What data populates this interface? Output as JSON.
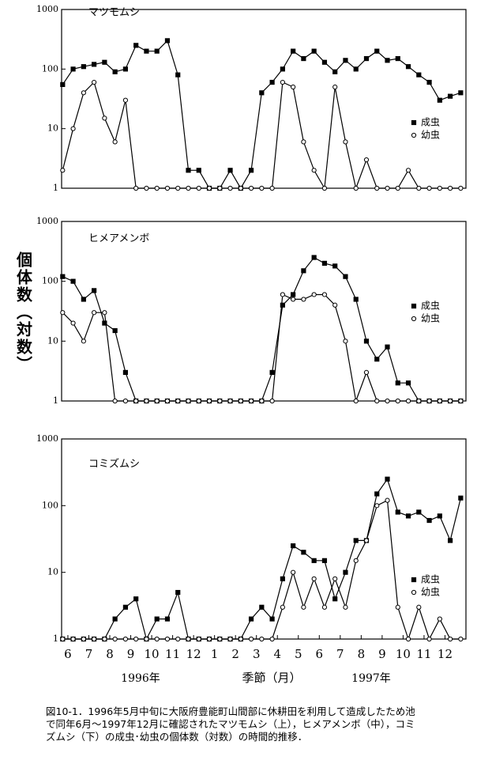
{
  "ylabel": "個体数（対数）",
  "year_labels": [
    "1996年",
    "1997年"
  ],
  "caption": "図10-1．1996年5月中旬に大阪府豊能町山間部に休耕田を利用して造成したため池で同年6月～1997年12月に確認されたマツモムシ（上），ヒメアメンボ（中），コミズムシ（下）の成虫･幼虫の個体数（対数）の時間的推移．",
  "chart_data": [
    {
      "type": "line",
      "title": "マツモムシ",
      "log_scale": true,
      "legend_position": "right",
      "x": [
        5.75,
        6.25,
        6.75,
        7.25,
        7.75,
        8.25,
        8.75,
        9.25,
        9.75,
        10.25,
        10.75,
        11.25,
        11.75,
        12.25,
        12.75,
        13.25,
        13.75,
        14.25,
        14.75,
        15.25,
        15.75,
        16.25,
        16.75,
        17.25,
        17.75,
        18.25,
        18.75,
        19.25,
        19.75,
        20.25,
        20.75,
        21.25,
        21.75,
        22.25,
        22.75,
        23.25,
        23.75,
        24.25,
        24.75
      ],
      "xlim": [
        5.7,
        25
      ],
      "ylim": [
        1,
        1000
      ],
      "yticks": [
        1,
        10,
        100,
        1000
      ],
      "series": [
        {
          "name": "成虫",
          "color": "#000000",
          "marker": "square",
          "values": [
            55,
            100,
            110,
            120,
            130,
            90,
            100,
            250,
            200,
            200,
            300,
            80,
            2,
            2,
            1,
            1,
            2,
            1,
            2,
            40,
            60,
            100,
            200,
            150,
            200,
            130,
            90,
            140,
            100,
            150,
            200,
            140,
            150,
            110,
            80,
            60,
            30,
            35,
            40
          ]
        },
        {
          "name": "幼虫",
          "color": "#000000",
          "marker": "circle",
          "values": [
            2,
            10,
            40,
            60,
            15,
            6,
            30,
            1,
            1,
            1,
            1,
            1,
            1,
            1,
            1,
            1,
            1,
            1,
            1,
            1,
            1,
            60,
            50,
            6,
            2,
            1,
            50,
            6,
            1,
            3,
            1,
            1,
            1,
            2,
            1,
            1,
            1,
            1,
            1
          ]
        }
      ]
    },
    {
      "type": "line",
      "title": "ヒメアメンボ",
      "log_scale": true,
      "legend_position": "right",
      "x": [
        5.75,
        6.25,
        6.75,
        7.25,
        7.75,
        8.25,
        8.75,
        9.25,
        9.75,
        10.25,
        10.75,
        11.25,
        11.75,
        12.25,
        12.75,
        13.25,
        13.75,
        14.25,
        14.75,
        15.25,
        15.75,
        16.25,
        16.75,
        17.25,
        17.75,
        18.25,
        18.75,
        19.25,
        19.75,
        20.25,
        20.75,
        21.25,
        21.75,
        22.25,
        22.75,
        23.25,
        23.75,
        24.25,
        24.75
      ],
      "xlim": [
        5.7,
        25
      ],
      "ylim": [
        1,
        1000
      ],
      "yticks": [
        1,
        10,
        100,
        1000
      ],
      "series": [
        {
          "name": "成虫",
          "color": "#000000",
          "marker": "square",
          "values": [
            120,
            100,
            50,
            70,
            20,
            15,
            3,
            1,
            1,
            1,
            1,
            1,
            1,
            1,
            1,
            1,
            1,
            1,
            1,
            1,
            3,
            40,
            60,
            150,
            250,
            200,
            180,
            120,
            50,
            10,
            5,
            8,
            2,
            2,
            1,
            1,
            1,
            1,
            1
          ]
        },
        {
          "name": "幼虫",
          "color": "#000000",
          "marker": "circle",
          "values": [
            30,
            20,
            10,
            30,
            30,
            1,
            1,
            1,
            1,
            1,
            1,
            1,
            1,
            1,
            1,
            1,
            1,
            1,
            1,
            1,
            1,
            60,
            50,
            50,
            60,
            60,
            40,
            10,
            1,
            3,
            1,
            1,
            1,
            1,
            1,
            1,
            1,
            1,
            1
          ]
        }
      ]
    },
    {
      "type": "line",
      "title": "コミズムシ",
      "log_scale": true,
      "legend_position": "right",
      "xlabel": "季節（月）",
      "x": [
        5.75,
        6.25,
        6.75,
        7.25,
        7.75,
        8.25,
        8.75,
        9.25,
        9.75,
        10.25,
        10.75,
        11.25,
        11.75,
        12.25,
        12.75,
        13.25,
        13.75,
        14.25,
        14.75,
        15.25,
        15.75,
        16.25,
        16.75,
        17.25,
        17.75,
        18.25,
        18.75,
        19.25,
        19.75,
        20.25,
        20.75,
        21.25,
        21.75,
        22.25,
        22.75,
        23.25,
        23.75,
        24.25,
        24.75
      ],
      "xlim": [
        5.7,
        25
      ],
      "ylim": [
        1,
        1000
      ],
      "yticks": [
        1,
        10,
        100,
        1000
      ],
      "xticks": [
        {
          "value": 6,
          "label": "6"
        },
        {
          "value": 7,
          "label": "7"
        },
        {
          "value": 8,
          "label": "8"
        },
        {
          "value": 9,
          "label": "9"
        },
        {
          "value": 10,
          "label": "10"
        },
        {
          "value": 11,
          "label": "11"
        },
        {
          "value": 12,
          "label": "12"
        },
        {
          "value": 13,
          "label": "1"
        },
        {
          "value": 14,
          "label": "2"
        },
        {
          "value": 15,
          "label": "3"
        },
        {
          "value": 16,
          "label": "4"
        },
        {
          "value": 17,
          "label": "5"
        },
        {
          "value": 18,
          "label": "6"
        },
        {
          "value": 19,
          "label": "7"
        },
        {
          "value": 20,
          "label": "8"
        },
        {
          "value": 21,
          "label": "9"
        },
        {
          "value": 22,
          "label": "10"
        },
        {
          "value": 23,
          "label": "11"
        },
        {
          "value": 24,
          "label": "12"
        }
      ],
      "series": [
        {
          "name": "成虫",
          "color": "#000000",
          "marker": "square",
          "values": [
            1,
            1,
            1,
            1,
            1,
            2,
            3,
            4,
            1,
            2,
            2,
            5,
            1,
            1,
            1,
            1,
            1,
            1,
            2,
            3,
            2,
            8,
            25,
            20,
            15,
            15,
            4,
            10,
            30,
            30,
            150,
            250,
            80,
            70,
            80,
            60,
            70,
            30,
            130
          ]
        },
        {
          "name": "幼虫",
          "color": "#000000",
          "marker": "circle",
          "values": [
            1,
            1,
            1,
            1,
            1,
            1,
            1,
            1,
            1,
            1,
            1,
            1,
            1,
            1,
            1,
            1,
            1,
            1,
            1,
            1,
            1,
            3,
            10,
            3,
            8,
            3,
            8,
            3,
            15,
            30,
            100,
            120,
            3,
            1,
            3,
            1,
            2,
            1,
            1
          ]
        }
      ]
    }
  ]
}
